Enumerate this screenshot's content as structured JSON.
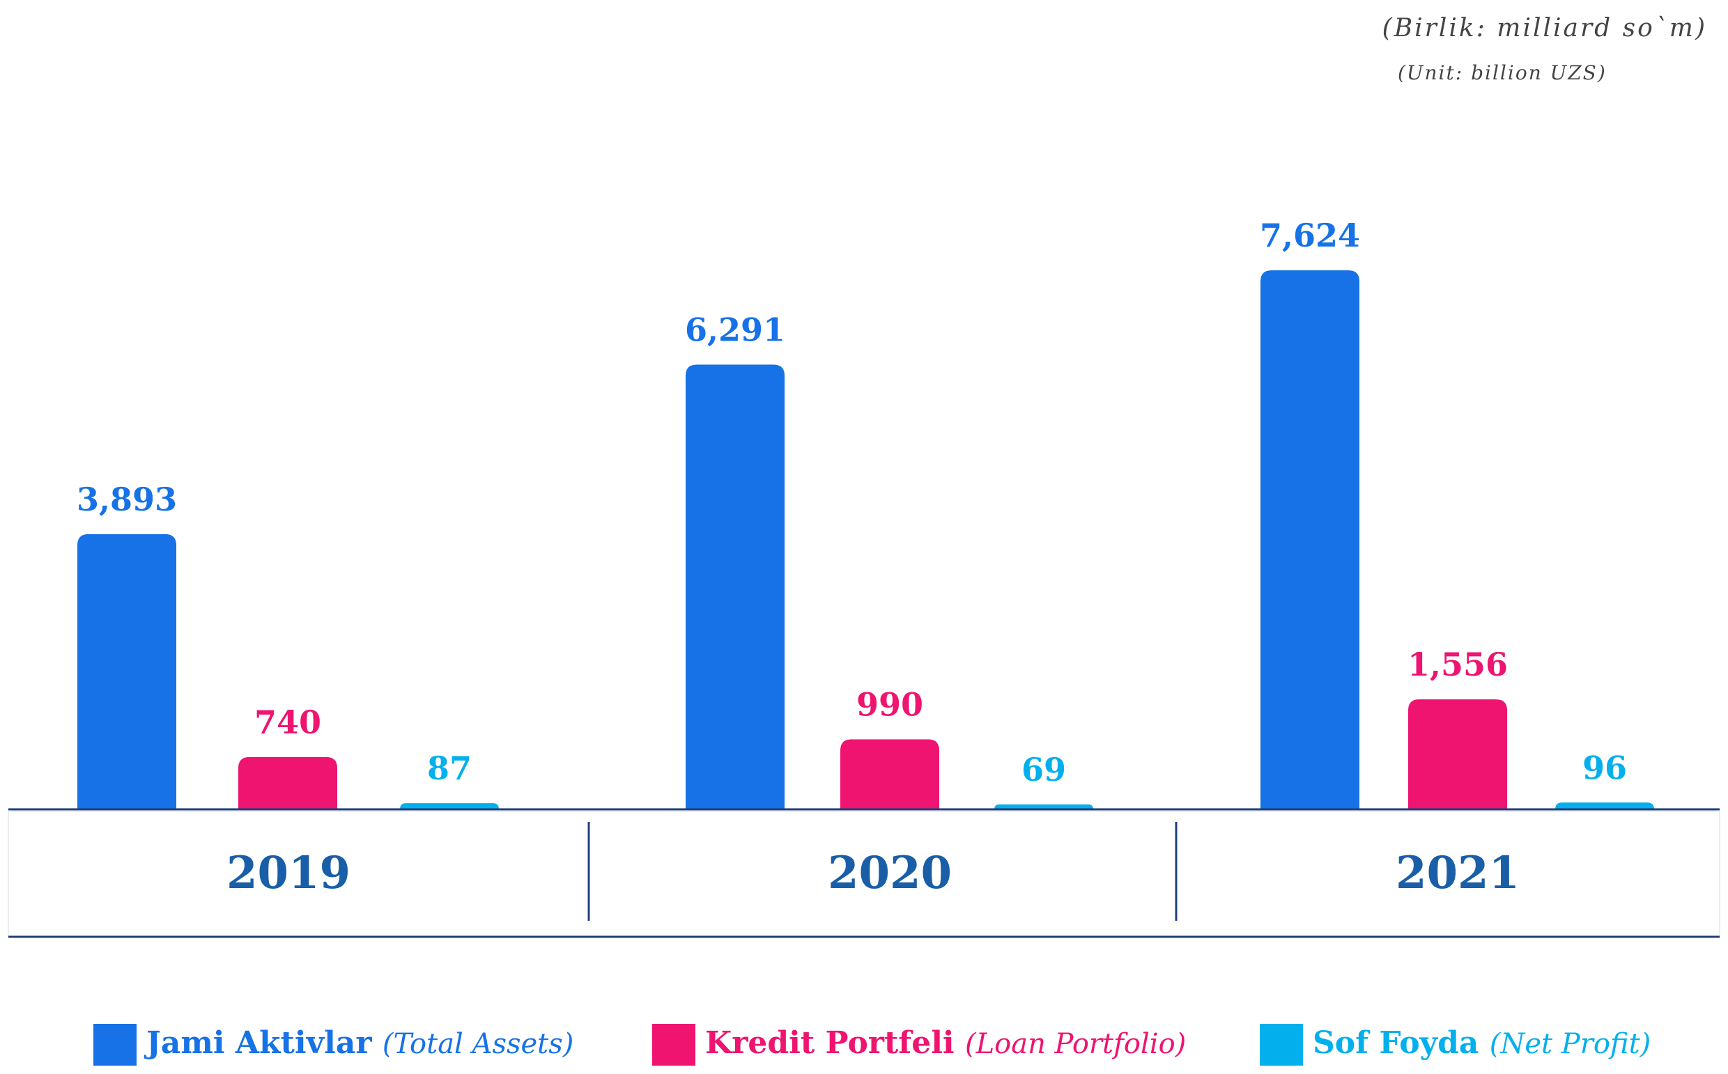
{
  "unit": {
    "uz": "(Birlik: milliard so`m)",
    "en": "(Unit: billion UZS)"
  },
  "colors": {
    "assets": "#1672e6",
    "loans": "#ee1470",
    "profit": "#03b0ed",
    "axis": "#1f3f7a",
    "year": "#1a5ea8"
  },
  "chart_data": {
    "type": "bar",
    "categories": [
      "2019",
      "2020",
      "2021"
    ],
    "series": [
      {
        "name": "Jami Aktivlar",
        "name_en": "(Total Assets)",
        "values": [
          3893,
          6291,
          7624
        ],
        "labels": [
          "3,893",
          "6,291",
          "7,624"
        ],
        "color": "#1672e6"
      },
      {
        "name": "Kredit Portfeli",
        "name_en": "(Loan Portfolio)",
        "values": [
          740,
          990,
          1556
        ],
        "labels": [
          "740",
          "990",
          "1,556"
        ],
        "color": "#ee1470"
      },
      {
        "name": "Sof Foyda",
        "name_en": "(Net Profit)",
        "values": [
          87,
          69,
          96
        ],
        "labels": [
          "87",
          "69",
          "96"
        ],
        "color": "#03b0ed"
      }
    ],
    "legend_position": "bottom"
  }
}
